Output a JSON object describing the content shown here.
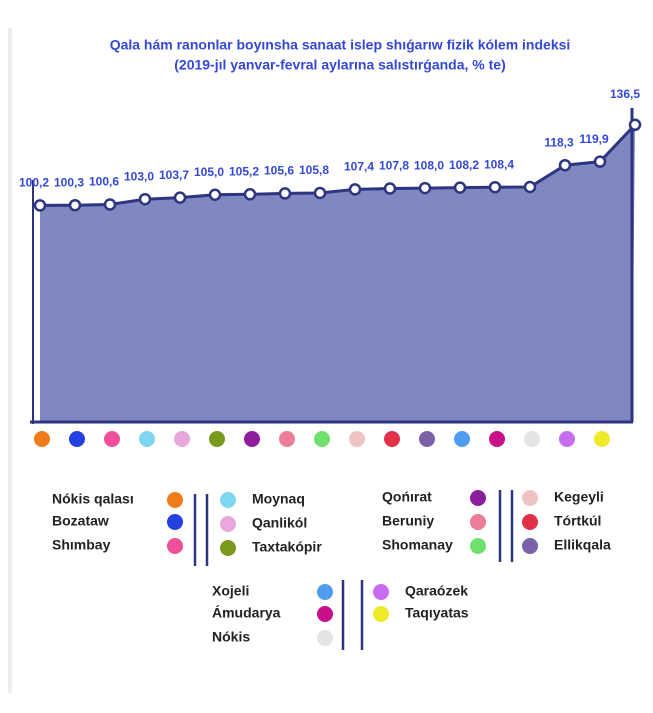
{
  "chart_data": {
    "type": "area",
    "title": "Qala hám ranonlar boyınsha sanaat islep shıǵarıw fizik kólem indeksi",
    "subtitle": "(2019-jıl yanvar-fevral aylarına salıstırǵanda, % te)",
    "categories": [
      "Nókis qalası",
      "Bozataw",
      "Shımbay",
      "Moynaq",
      "Qanlikól",
      "Taxtakópir",
      "Qońırat",
      "Beruniy",
      "Shomanay",
      "Kegeyli",
      "Tórtkúl",
      "Ellikqala",
      "Xojeli",
      "Ámudarya",
      "Nókis",
      "Qaraózek",
      "Taqıyatas",
      null
    ],
    "category_colors": [
      "#f07b1a",
      "#2340e0",
      "#f0509a",
      "#7fd6ef",
      "#e9a7dd",
      "#7a9a1e",
      "#8c1e9c",
      "#ec7c98",
      "#6fe06c",
      "#f0c3c3",
      "#e23048",
      "#7b62a8",
      "#4f9cf0",
      "#c8108a",
      "#e4e4e4",
      "#c86cee",
      "#eeea2a"
    ],
    "values": [
      100.2,
      100.3,
      100.6,
      103.0,
      103.7,
      105.0,
      105.2,
      105.6,
      105.8,
      107.4,
      107.8,
      108.0,
      108.2,
      108.4,
      108.5,
      118.3,
      119.9,
      136.5
    ],
    "value_labels": [
      "100,2",
      "100,3",
      "100,6",
      "103,0",
      "103,7",
      "105,0",
      "105,2",
      "105,6",
      "105,8",
      "107,4",
      "107,8",
      "108,0",
      "108,2",
      "108,4",
      null,
      "118,3",
      "119,9",
      "136,5"
    ],
    "color": "#8088c2",
    "line_color": "#2e3580",
    "ylim": [
      0,
      140
    ]
  }
}
